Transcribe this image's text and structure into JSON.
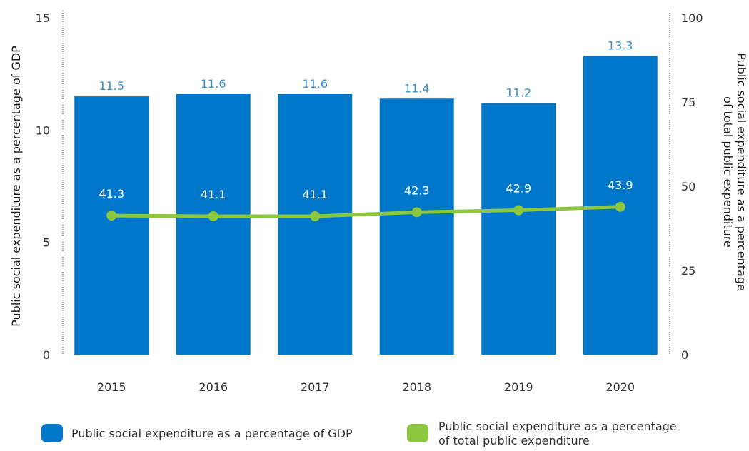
{
  "chart_data": {
    "type": "bar",
    "categories": [
      "2015",
      "2016",
      "2017",
      "2018",
      "2019",
      "2020"
    ],
    "series": [
      {
        "name": "Public social expenditure as a percentage of GDP",
        "chart_type": "bar",
        "axis": "left",
        "values": [
          11.5,
          11.6,
          11.6,
          11.4,
          11.2,
          13.3
        ],
        "labels": [
          "11.5",
          "11.6",
          "11.6",
          "11.4",
          "11.2",
          "13.3"
        ],
        "color": "#0077c8"
      },
      {
        "name": "Public social expenditure as a percentage of total public expenditure",
        "chart_type": "line",
        "axis": "right",
        "values": [
          41.3,
          41.1,
          41.1,
          42.3,
          42.9,
          43.9
        ],
        "labels": [
          "41.3",
          "41.1",
          "41.1",
          "42.3",
          "42.9",
          "43.9"
        ],
        "color": "#8dc63f"
      }
    ],
    "y_left": {
      "label": "Public social expenditure as a percentage of GDP",
      "lim": [
        0,
        15
      ],
      "ticks": [
        "0",
        "5",
        "10",
        "15"
      ]
    },
    "y_right": {
      "label_lines": [
        "Public social expenditure as a percentage",
        "of total public expenditure"
      ],
      "lim": [
        0,
        100
      ],
      "ticks": [
        "0",
        "25",
        "50",
        "75",
        "100"
      ]
    },
    "xlabel": "",
    "legend": {
      "placement": "bottom",
      "items": [
        {
          "lines": [
            "Public social expenditure as a percentage of GDP"
          ],
          "color": "#0077c8"
        },
        {
          "lines": [
            "Public social expenditure as a percentage",
            "of total public expenditure"
          ],
          "color": "#8dc63f"
        }
      ]
    },
    "grid": false,
    "bar_label_color": "#3a8fd0",
    "line_label_color": "#ffffff"
  }
}
